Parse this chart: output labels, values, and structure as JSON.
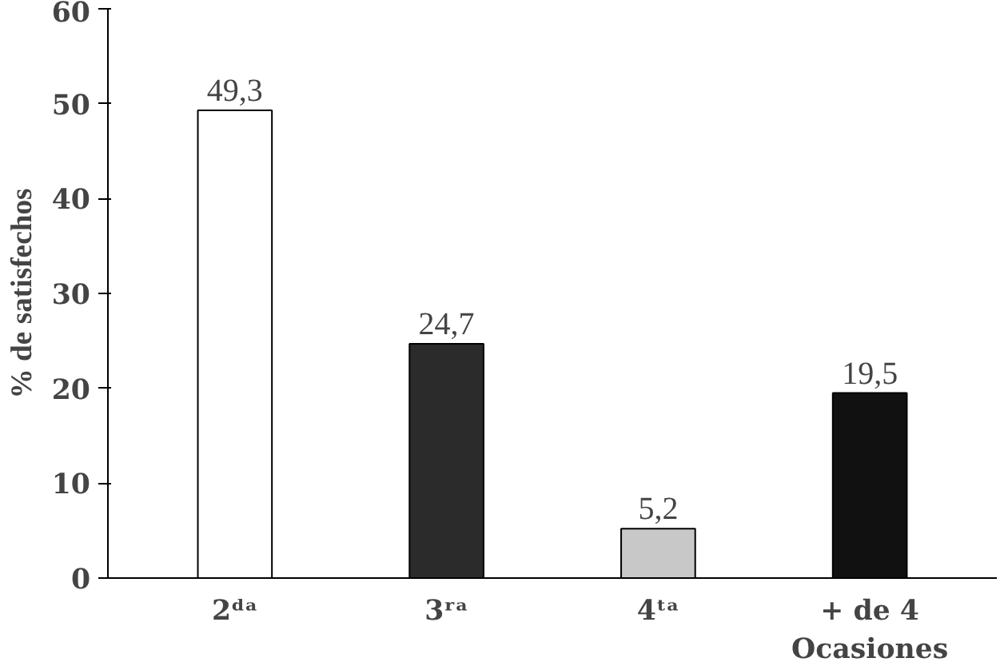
{
  "chart_data": {
    "type": "bar",
    "ylabel": "% de satisfechos",
    "categories": [
      "2ᵈᵃ",
      "3ʳᵃ",
      "4ᵗᵃ",
      "+ de 4\nOcasiones"
    ],
    "values": [
      49.3,
      24.7,
      5.2,
      19.5
    ],
    "colors": [
      "#ffffff",
      "#2b2b2b",
      "#c8c8c8",
      "#111111"
    ],
    "value_labels": [
      "49,3",
      "24,7",
      "5,2",
      "19,5"
    ],
    "ylim": [
      0,
      60
    ],
    "yticks": [
      0,
      10,
      20,
      30,
      40,
      50,
      60
    ],
    "grid": false
  }
}
